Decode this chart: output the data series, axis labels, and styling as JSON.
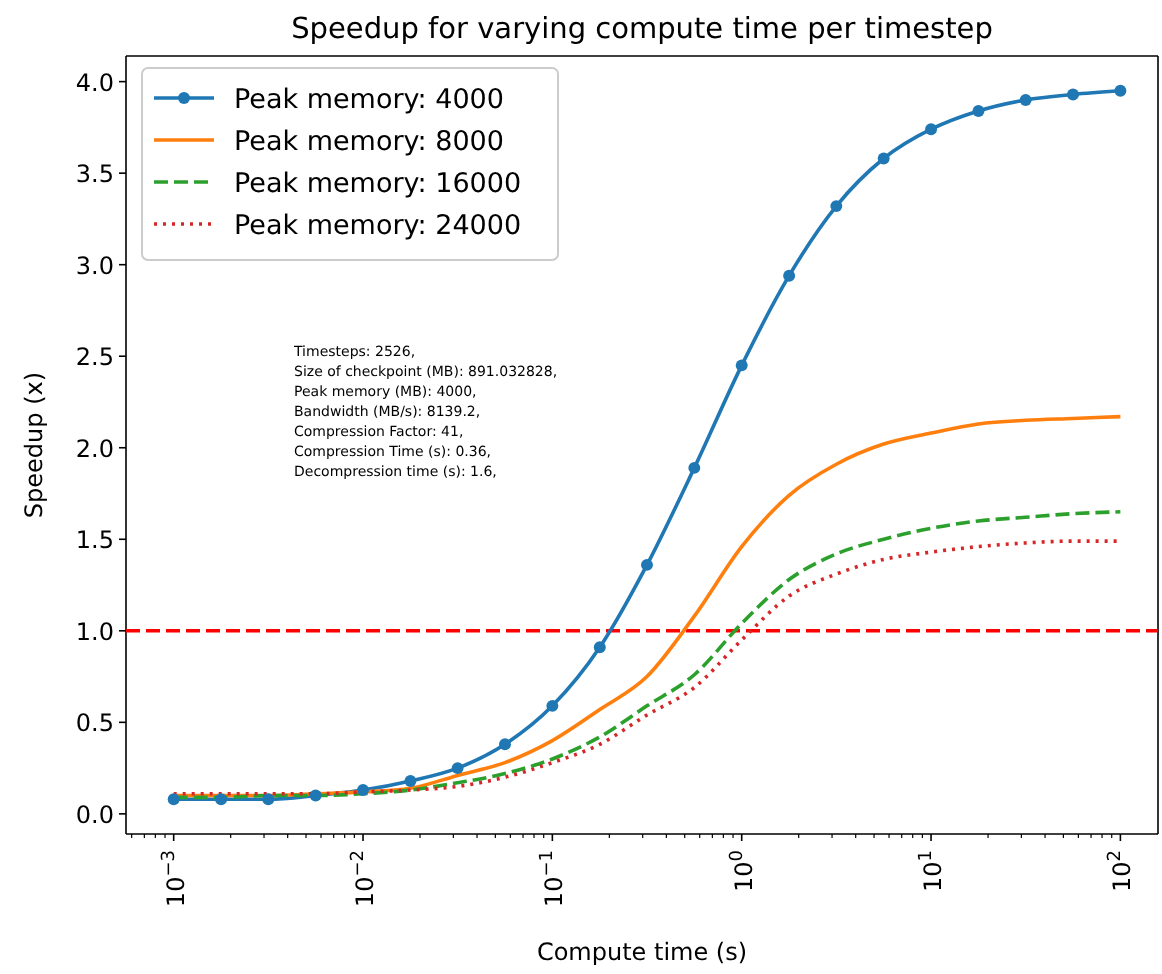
{
  "chart_data": {
    "type": "line",
    "title": "Speedup for varying compute time per timestep",
    "xlabel": "Compute time (s)",
    "ylabel": "Speedup (x)",
    "x": [
      0.001,
      0.00178,
      0.00316,
      0.00562,
      0.01,
      0.0178,
      0.0316,
      0.0562,
      0.1,
      0.178,
      0.316,
      0.562,
      1,
      1.78,
      3.16,
      5.62,
      10,
      17.8,
      31.6,
      56.2,
      100
    ],
    "series": [
      {
        "name": "Peak memory: 4000",
        "color": "#1f77b4",
        "marker": "circle",
        "line_style": "solid",
        "values": [
          0.08,
          0.08,
          0.08,
          0.1,
          0.13,
          0.18,
          0.25,
          0.38,
          0.59,
          0.91,
          1.36,
          1.89,
          2.45,
          2.94,
          3.32,
          3.58,
          3.74,
          3.84,
          3.9,
          3.93,
          3.95
        ]
      },
      {
        "name": "Peak memory: 8000",
        "color": "#ff7f0e",
        "marker": "none",
        "line_style": "solid",
        "values": [
          0.1,
          0.1,
          0.1,
          0.11,
          0.12,
          0.14,
          0.21,
          0.28,
          0.4,
          0.57,
          0.75,
          1.08,
          1.46,
          1.74,
          1.91,
          2.02,
          2.08,
          2.13,
          2.15,
          2.16,
          2.17
        ]
      },
      {
        "name": "Peak memory: 16000",
        "color": "#2ca02c",
        "marker": "none",
        "line_style": "dashed",
        "values": [
          0.09,
          0.09,
          0.1,
          0.1,
          0.11,
          0.13,
          0.17,
          0.22,
          0.3,
          0.42,
          0.59,
          0.76,
          1.04,
          1.28,
          1.42,
          1.5,
          1.56,
          1.6,
          1.62,
          1.64,
          1.65
        ]
      },
      {
        "name": "Peak memory: 24000",
        "color": "#d62728",
        "marker": "none",
        "line_style": "dotted",
        "values": [
          0.11,
          0.11,
          0.11,
          0.11,
          0.12,
          0.13,
          0.15,
          0.2,
          0.28,
          0.38,
          0.54,
          0.69,
          0.95,
          1.19,
          1.31,
          1.39,
          1.43,
          1.46,
          1.48,
          1.49,
          1.49
        ]
      }
    ],
    "log": "x",
    "xlim": [
      0.00056,
      158
    ],
    "ylim": [
      -0.11,
      4.14
    ],
    "xticks": [
      {
        "value": 0.0006,
        "label": null
      },
      {
        "value": 0.0007,
        "label": null
      },
      {
        "value": 0.0008,
        "label": null
      },
      {
        "value": 0.0009,
        "label": null
      },
      {
        "value": 0.001,
        "label": "10$^{−3}$"
      },
      {
        "value": 0.002,
        "label": null
      },
      {
        "value": 0.003,
        "label": null
      },
      {
        "value": 0.004,
        "label": null
      },
      {
        "value": 0.005,
        "label": null
      },
      {
        "value": 0.006,
        "label": null
      },
      {
        "value": 0.007,
        "label": null
      },
      {
        "value": 0.008,
        "label": null
      },
      {
        "value": 0.009,
        "label": null
      },
      {
        "value": 0.01,
        "label": "10$^{−2}$"
      },
      {
        "value": 0.02,
        "label": null
      },
      {
        "value": 0.03,
        "label": null
      },
      {
        "value": 0.04,
        "label": null
      },
      {
        "value": 0.05,
        "label": null
      },
      {
        "value": 0.06,
        "label": null
      },
      {
        "value": 0.07,
        "label": null
      },
      {
        "value": 0.08,
        "label": null
      },
      {
        "value": 0.09,
        "label": null
      },
      {
        "value": 0.1,
        "label": "10$^{−1}$"
      },
      {
        "value": 0.2,
        "label": null
      },
      {
        "value": 0.3,
        "label": null
      },
      {
        "value": 0.4,
        "label": null
      },
      {
        "value": 0.5,
        "label": null
      },
      {
        "value": 0.6,
        "label": null
      },
      {
        "value": 0.7,
        "label": null
      },
      {
        "value": 0.8,
        "label": null
      },
      {
        "value": 0.9,
        "label": null
      },
      {
        "value": 1,
        "label": "10$^{0}$"
      },
      {
        "value": 2,
        "label": null
      },
      {
        "value": 3,
        "label": null
      },
      {
        "value": 4,
        "label": null
      },
      {
        "value": 5,
        "label": null
      },
      {
        "value": 6,
        "label": null
      },
      {
        "value": 7,
        "label": null
      },
      {
        "value": 8,
        "label": null
      },
      {
        "value": 9,
        "label": null
      },
      {
        "value": 10,
        "label": "10$^{1}$"
      },
      {
        "value": 20,
        "label": null
      },
      {
        "value": 30,
        "label": null
      },
      {
        "value": 40,
        "label": null
      },
      {
        "value": 50,
        "label": null
      },
      {
        "value": 60,
        "label": null
      },
      {
        "value": 70,
        "label": null
      },
      {
        "value": 80,
        "label": null
      },
      {
        "value": 90,
        "label": null
      },
      {
        "value": 100,
        "label": "10$^{2}$"
      }
    ],
    "yticks": [
      {
        "value": 0,
        "label": "0.0"
      },
      {
        "value": 0.5,
        "label": "0.5"
      },
      {
        "value": 1,
        "label": "1.0"
      },
      {
        "value": 1.5,
        "label": "1.5"
      },
      {
        "value": 2,
        "label": "2.0"
      },
      {
        "value": 2.5,
        "label": "2.5"
      },
      {
        "value": 3,
        "label": "3.0"
      },
      {
        "value": 3.5,
        "label": "3.5"
      },
      {
        "value": 4,
        "label": "4.0"
      }
    ],
    "ref_lines": [
      {
        "axis": "y",
        "value": 1,
        "color": "#ff0000",
        "line_style": "dashed"
      }
    ],
    "annotations": [
      "Timesteps: 2526,\nSize of checkpoint (MB): 891.032828,\nPeak memory (MB): 4000,\nBandwidth (MB/s): 8139.2,\nCompression Factor: 41,\nCompression Time (s): 0.36,\nDecompression time (s): 1.6,"
    ],
    "legend": "top left",
    "grid": false
  }
}
